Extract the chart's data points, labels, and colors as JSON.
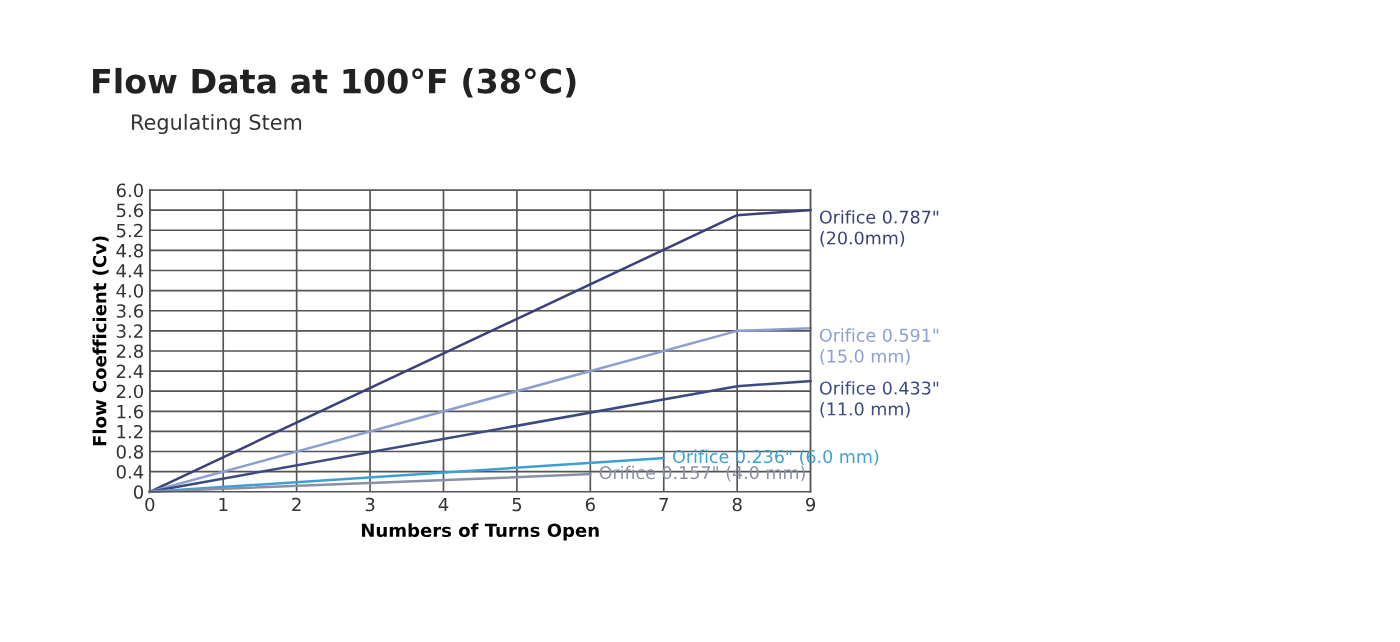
{
  "chart_data": {
    "type": "line",
    "title": "Flow Data at 100°F (38°C)",
    "subtitle": "Regulating Stem",
    "xlabel": "Numbers of Turns Open",
    "ylabel": "Flow Coefficient (Cv)",
    "series": [
      {
        "name": "Orifice 0.787\"\n(20.0mm)",
        "color": "#3b3f7a",
        "x": [
          0,
          8,
          9
        ],
        "values": [
          0,
          5.5,
          5.6
        ]
      },
      {
        "name": "Orifice 0.591\"\n(15.0 mm)",
        "color": "#8d9fd0",
        "x": [
          0,
          8,
          9
        ],
        "values": [
          0,
          3.2,
          3.25
        ]
      },
      {
        "name": "Orifice 0.433\"\n(11.0 mm)",
        "color": "#3c4a80",
        "x": [
          0,
          8,
          9
        ],
        "values": [
          0,
          2.1,
          2.2
        ]
      },
      {
        "name": "Orifice 0.236\" (6.0 mm)",
        "color": "#3fa0d0",
        "x": [
          0,
          7
        ],
        "values": [
          0,
          0.67
        ]
      },
      {
        "name": "Orifice 0.157\" (4.0 mm)",
        "color": "#8a8fa8",
        "x": [
          0,
          6
        ],
        "values": [
          0,
          0.35
        ]
      }
    ],
    "xlim": [
      0,
      9
    ],
    "xticks": [
      0,
      1,
      2,
      3,
      4,
      5,
      6,
      7,
      8,
      9
    ],
    "ylim": [
      0,
      6.0
    ],
    "yticks": [
      0,
      0.4,
      0.8,
      1.2,
      1.6,
      {
        "value": 2.0,
        "label": "2.0"
      },
      2.4,
      2.8,
      3.2,
      3.6,
      {
        "value": 4.0,
        "label": "4.0"
      },
      4.4,
      4.8,
      5.2,
      5.6,
      {
        "value": 6.0,
        "label": "6.0"
      }
    ],
    "grid": true,
    "marker": "none",
    "line_style": "solid"
  }
}
